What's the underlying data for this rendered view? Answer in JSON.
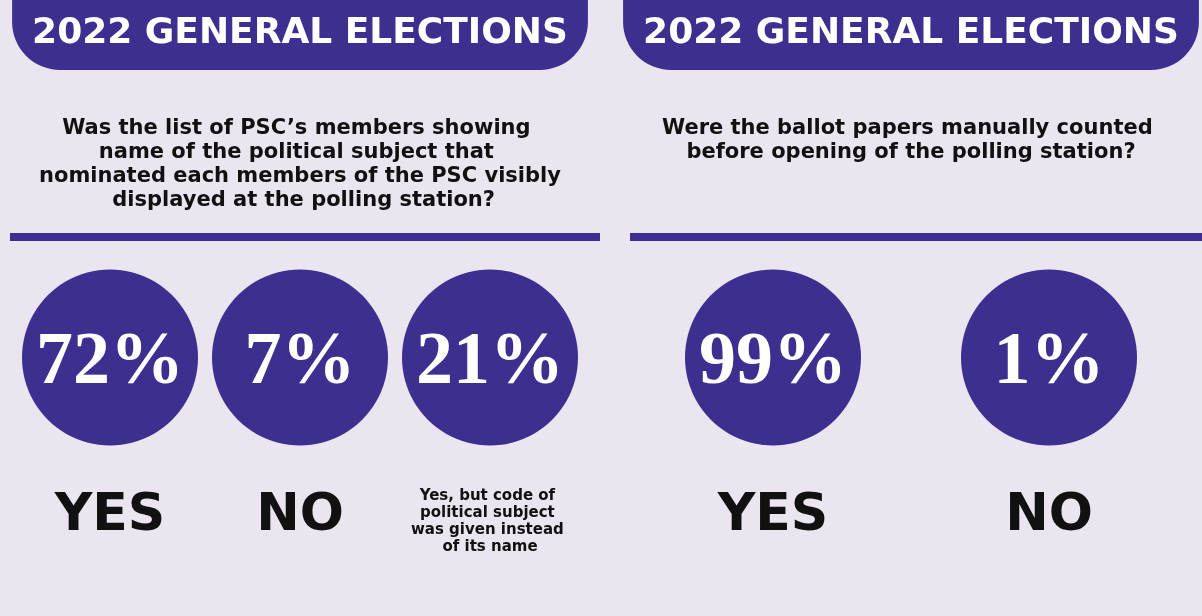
{
  "chart_data": [
    {
      "type": "other",
      "title": "2022 GENERAL ELECTIONS",
      "subtitle": "Was the list of PSC’s members showing name of the political subject that nominated each members of the PSC visibly displayed at the polling station?",
      "categories": [
        "YES",
        "NO",
        "Yes, but code of political subject was given instead of its name"
      ],
      "values": [
        72,
        7,
        21
      ],
      "value_labels": [
        "72%",
        "7%",
        "21%"
      ],
      "color": "#3d2f8f"
    },
    {
      "type": "other",
      "title": "2022 GENERAL ELECTIONS",
      "subtitle": "Were the ballot papers manually counted before opening of the polling station?",
      "categories": [
        "YES",
        "NO"
      ],
      "values": [
        99,
        1
      ],
      "value_labels": [
        "99%",
        "1%"
      ],
      "color": "#3d2f8f"
    }
  ]
}
